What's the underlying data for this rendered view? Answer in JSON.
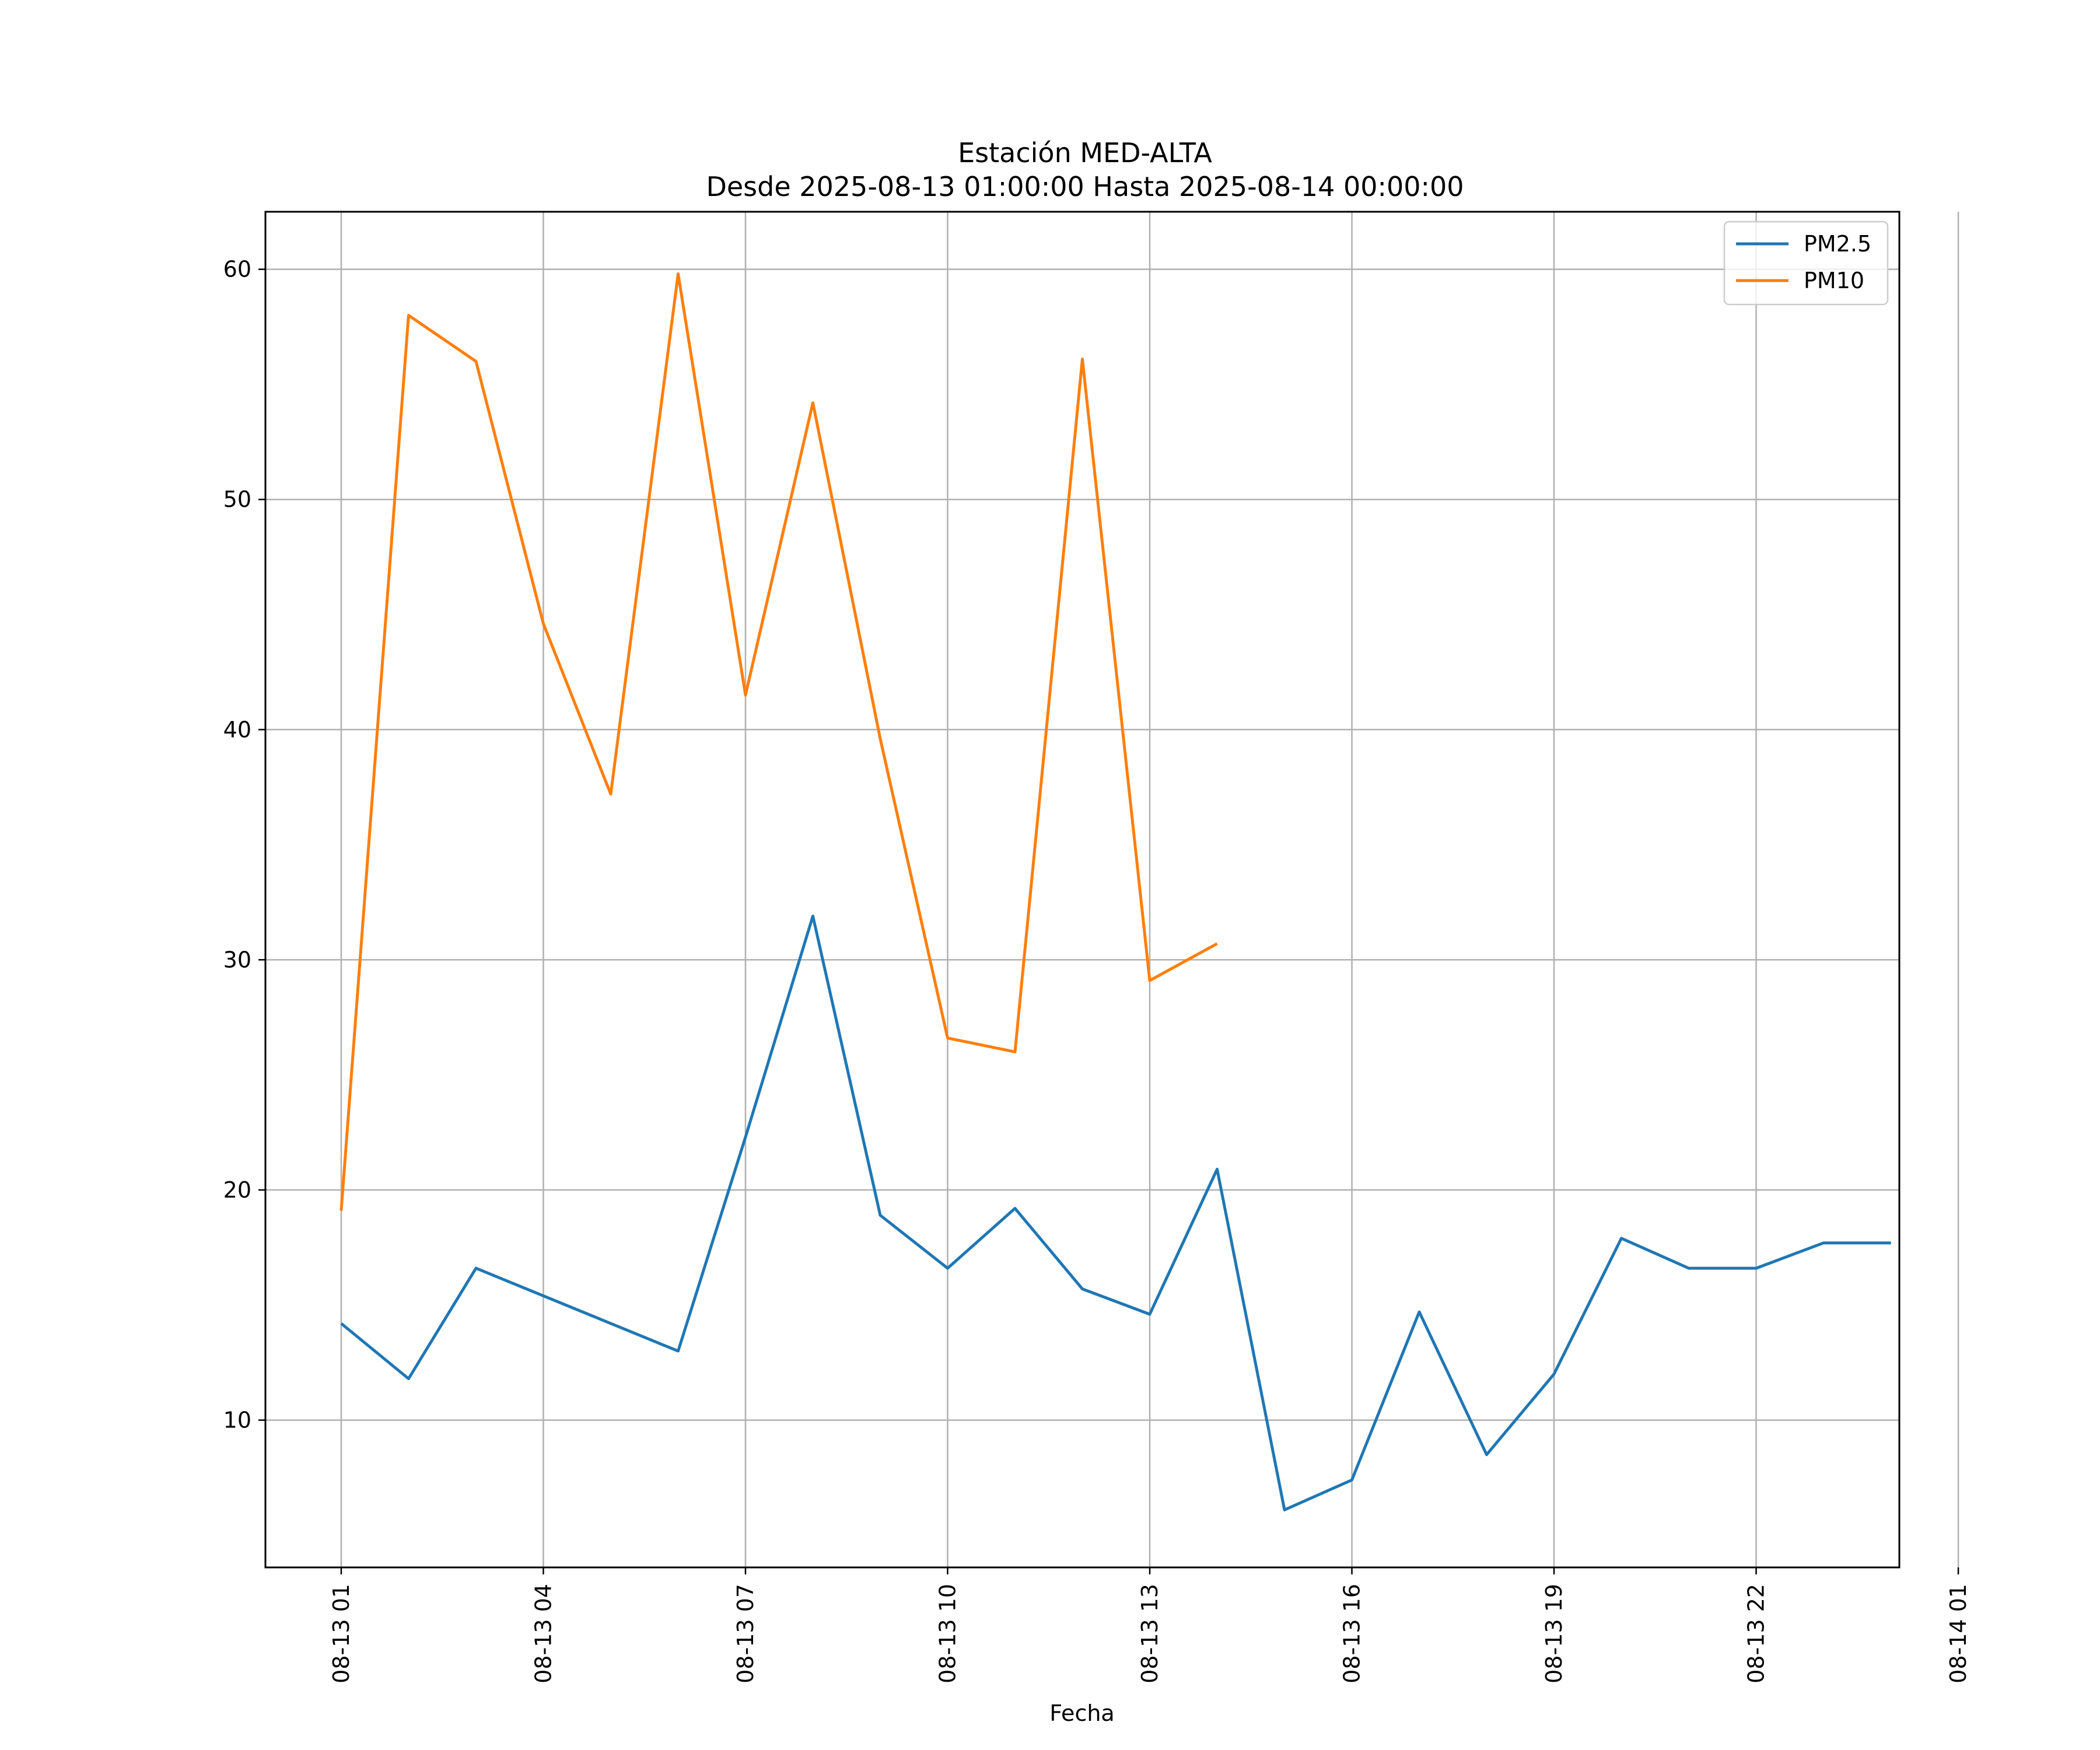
{
  "chart_data": {
    "type": "line",
    "title": "Estación MED-ALTA",
    "subtitle": "Desde 2025-08-13 01:00:00 Hasta 2025-08-14 00:00:00",
    "xlabel": "Fecha",
    "ylabel": "",
    "x_unit": "hours since 2025-08-13 01:00",
    "xlim": [
      -1.125,
      23.125
    ],
    "ylim": [
      3.6,
      62.5
    ],
    "xticks": [
      {
        "value": 0,
        "label": "08-13 01"
      },
      {
        "value": 3,
        "label": "08-13 04"
      },
      {
        "value": 6,
        "label": "08-13 07"
      },
      {
        "value": 9,
        "label": "08-13 10"
      },
      {
        "value": 12,
        "label": "08-13 13"
      },
      {
        "value": 15,
        "label": "08-13 16"
      },
      {
        "value": 18,
        "label": "08-13 19"
      },
      {
        "value": 21,
        "label": "08-13 22"
      },
      {
        "value": 24,
        "label": "08-14 01"
      }
    ],
    "yticks": [
      10,
      20,
      30,
      40,
      50,
      60
    ],
    "grid": true,
    "legend_position": "top-right",
    "series": [
      {
        "name": "PM2.5",
        "color": "#1f77b4",
        "x": [
          0,
          1,
          2,
          3,
          4,
          5,
          6,
          7,
          8,
          9,
          10,
          11,
          12,
          13,
          14,
          15,
          16,
          17,
          18,
          19,
          20,
          21,
          22,
          23
        ],
        "values": [
          14.2,
          11.8,
          16.6,
          15.4,
          14.2,
          13.0,
          22.3,
          31.9,
          18.9,
          16.6,
          19.2,
          15.7,
          14.6,
          20.9,
          6.1,
          7.4,
          14.7,
          8.5,
          12.0,
          17.9,
          16.6,
          16.6,
          17.7,
          17.7
        ]
      },
      {
        "name": "PM10",
        "color": "#ff7f0e",
        "x": [
          0,
          1,
          2,
          3,
          4,
          5,
          6,
          7,
          8,
          9,
          10,
          11,
          12,
          13
        ],
        "values": [
          19.1,
          58.0,
          56.0,
          44.6,
          37.2,
          59.8,
          41.5,
          54.2,
          39.6,
          26.6,
          26.0,
          56.1,
          29.1,
          30.7
        ]
      }
    ]
  }
}
